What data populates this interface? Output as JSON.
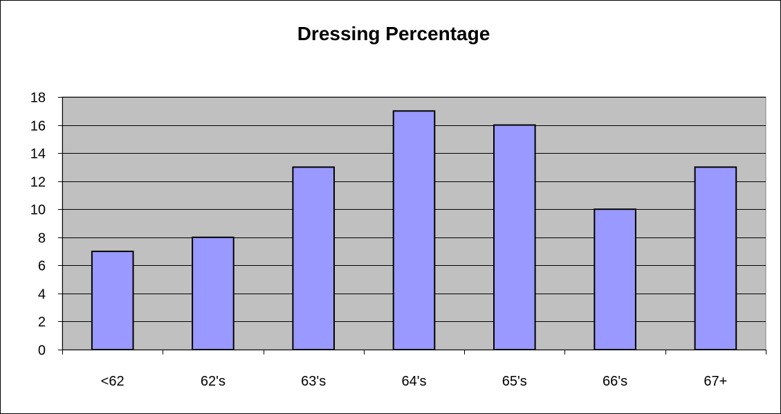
{
  "chart_data": {
    "type": "bar",
    "title": "Dressing Percentage",
    "xlabel": "",
    "ylabel": "",
    "categories": [
      "<62",
      "62's",
      "63's",
      "64's",
      "65's",
      "66's",
      "67+"
    ],
    "values": [
      7,
      8,
      13,
      17,
      16,
      10,
      13
    ],
    "ylim": [
      0,
      18
    ],
    "yticks": [
      "0",
      "2",
      "4",
      "6",
      "8",
      "10",
      "12",
      "14",
      "16",
      "18"
    ],
    "grid": true,
    "legend": "none"
  },
  "colors": {
    "bar_fill": "#9999ff",
    "plot_background": "#c0c0c0",
    "gridline": "#000000",
    "bar_outline": "#000000"
  }
}
